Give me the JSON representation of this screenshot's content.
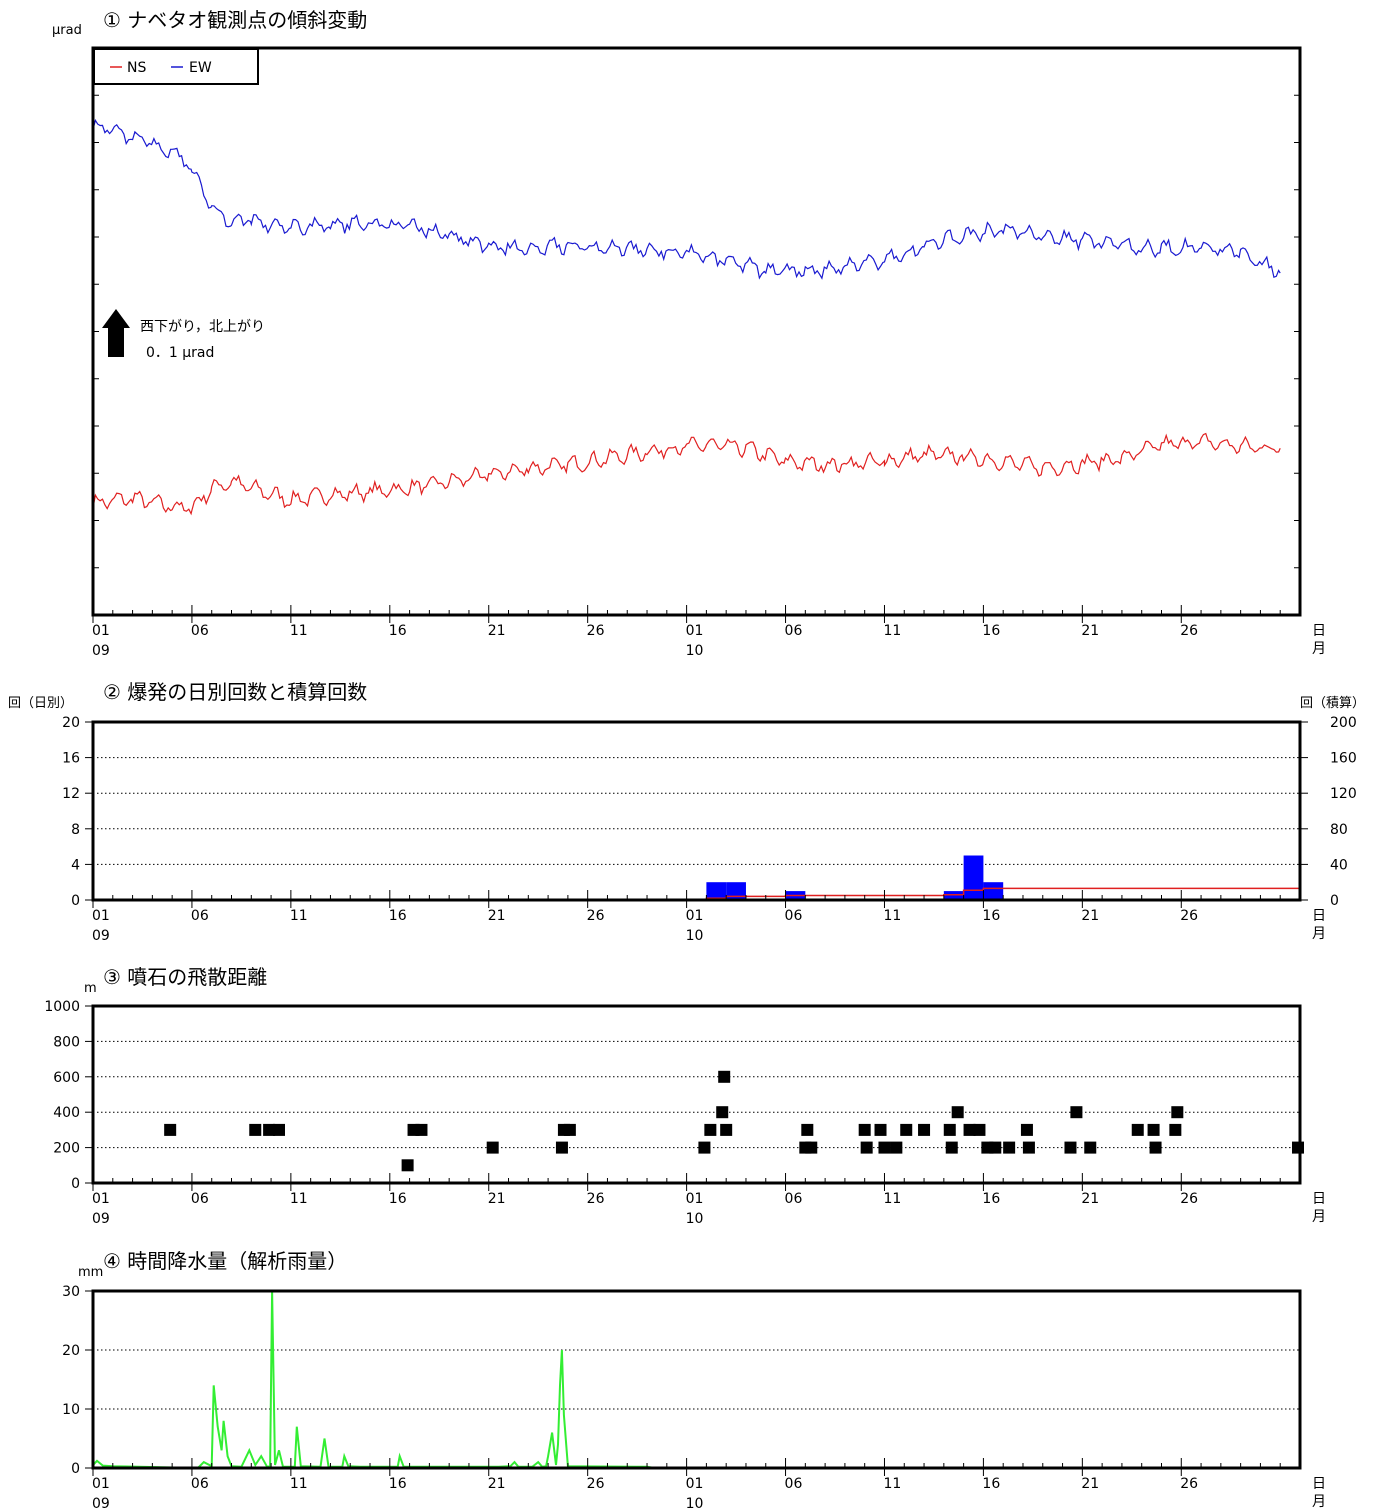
{
  "colors": {
    "ns": "#e02020",
    "ew": "#1a1ad0",
    "bar": "#0000ff",
    "cumulative": "#e02020",
    "rain": "#33ee33",
    "marker": "#000000"
  },
  "x_axis": {
    "tick_days": [
      0,
      5,
      10,
      15,
      20,
      25,
      30,
      35,
      40,
      45,
      50,
      55
    ],
    "tick_labels": [
      "01",
      "06",
      "11",
      "16",
      "21",
      "26",
      "01",
      "06",
      "11",
      "16",
      "21",
      "26"
    ],
    "month_labels": [
      {
        "day": 0,
        "label": "09"
      },
      {
        "day": 30,
        "label": "10"
      }
    ],
    "unit_day": "日",
    "unit_month": "月",
    "range_days": [
      0,
      61
    ]
  },
  "chart_data": [
    {
      "type": "line",
      "title": "① ナベタオ観測点の傾斜変動",
      "ylabel": "μrad",
      "legend": [
        {
          "name": "NS",
          "color": "#e02020"
        },
        {
          "name": "EW",
          "color": "#1a1ad0"
        }
      ],
      "annotation_line1": "西下がり，北上がり",
      "annotation_line2": "0．1 μrad",
      "x_unit": "day offset from 09/01",
      "series": [
        {
          "name": "NS",
          "points": [
            [
              0,
              2.35
            ],
            [
              2,
              2.5
            ],
            [
              4,
              2.25
            ],
            [
              5,
              2.2
            ],
            [
              6,
              2.8
            ],
            [
              7,
              3.0
            ],
            [
              8,
              2.8
            ],
            [
              10,
              2.45
            ],
            [
              12,
              2.6
            ],
            [
              14,
              2.7
            ],
            [
              16,
              2.8
            ],
            [
              18,
              3.0
            ],
            [
              20,
              3.2
            ],
            [
              22,
              3.4
            ],
            [
              24,
              3.5
            ],
            [
              26,
              3.7
            ],
            [
              28,
              3.9
            ],
            [
              30,
              4.05
            ],
            [
              31,
              4.1
            ],
            [
              33,
              4.0
            ],
            [
              35,
              3.6
            ],
            [
              37,
              3.5
            ],
            [
              40,
              3.6
            ],
            [
              42,
              3.8
            ],
            [
              44,
              3.75
            ],
            [
              46,
              3.6
            ],
            [
              48,
              3.4
            ],
            [
              50,
              3.55
            ],
            [
              52,
              3.7
            ],
            [
              54,
              4.1
            ],
            [
              56,
              4.2
            ],
            [
              58,
              4.05
            ],
            [
              60,
              4.0
            ]
          ]
        },
        {
          "name": "EW",
          "points": [
            [
              0,
              13.7
            ],
            [
              2,
              13.35
            ],
            [
              4,
              12.9
            ],
            [
              5,
              12.4
            ],
            [
              6,
              11.2
            ],
            [
              7,
              10.8
            ],
            [
              8,
              10.85
            ],
            [
              10,
              10.6
            ],
            [
              12,
              10.7
            ],
            [
              14,
              10.75
            ],
            [
              16,
              10.65
            ],
            [
              18,
              10.4
            ],
            [
              20,
              10.05
            ],
            [
              22,
              10.05
            ],
            [
              24,
              10.1
            ],
            [
              26,
              10.0
            ],
            [
              28,
              9.95
            ],
            [
              30,
              9.9
            ],
            [
              32,
              9.6
            ],
            [
              34,
              9.35
            ],
            [
              36,
              9.3
            ],
            [
              38,
              9.45
            ],
            [
              40,
              9.65
            ],
            [
              42,
              10.05
            ],
            [
              44,
              10.4
            ],
            [
              46,
              10.55
            ],
            [
              48,
              10.4
            ],
            [
              50,
              10.25
            ],
            [
              52,
              10.1
            ],
            [
              54,
              10.0
            ],
            [
              56,
              10.0
            ],
            [
              58,
              9.9
            ],
            [
              60,
              9.25
            ]
          ]
        }
      ],
      "ylim": [
        -1.0,
        16.0
      ],
      "ytick_count": 13
    },
    {
      "type": "bar",
      "title": "② 爆発の日別回数と積算回数",
      "ylabel_left": "回（日別）",
      "ylabel_right": "回（積算）",
      "yticks_left": [
        0,
        4,
        8,
        12,
        16,
        20
      ],
      "yticks_right": [
        0,
        40,
        80,
        120,
        160,
        200
      ],
      "ylim_left": [
        0,
        20
      ],
      "ylim_right": [
        0,
        200
      ],
      "bars": [
        {
          "day": 31,
          "value": 2
        },
        {
          "day": 32,
          "value": 2
        },
        {
          "day": 35,
          "value": 1
        },
        {
          "day": 43,
          "value": 1
        },
        {
          "day": 44,
          "value": 5
        },
        {
          "day": 45,
          "value": 2
        }
      ],
      "cumulative": [
        [
          0,
          0
        ],
        [
          31,
          2
        ],
        [
          32,
          4
        ],
        [
          35,
          5
        ],
        [
          43,
          6
        ],
        [
          44,
          11
        ],
        [
          45,
          13
        ],
        [
          61,
          13
        ]
      ]
    },
    {
      "type": "scatter",
      "title": "③ 噴石の飛散距離",
      "ylabel": "m",
      "yticks": [
        0,
        200,
        400,
        600,
        800,
        1000
      ],
      "ylim": [
        0,
        1000
      ],
      "points": [
        [
          3.9,
          300
        ],
        [
          8.2,
          300
        ],
        [
          8.9,
          300
        ],
        [
          9.4,
          300
        ],
        [
          15.9,
          100
        ],
        [
          16.2,
          300
        ],
        [
          16.6,
          300
        ],
        [
          20.2,
          200
        ],
        [
          23.7,
          200
        ],
        [
          23.8,
          300
        ],
        [
          24.1,
          300
        ],
        [
          30.9,
          200
        ],
        [
          31.2,
          300
        ],
        [
          31.8,
          400
        ],
        [
          31.9,
          600
        ],
        [
          32.0,
          300
        ],
        [
          36.0,
          200
        ],
        [
          36.1,
          300
        ],
        [
          36.3,
          200
        ],
        [
          39.0,
          300
        ],
        [
          39.1,
          200
        ],
        [
          39.8,
          300
        ],
        [
          40.0,
          200
        ],
        [
          40.6,
          200
        ],
        [
          41.1,
          300
        ],
        [
          42.0,
          300
        ],
        [
          43.3,
          300
        ],
        [
          43.4,
          200
        ],
        [
          43.7,
          400
        ],
        [
          44.3,
          300
        ],
        [
          44.8,
          300
        ],
        [
          45.2,
          200
        ],
        [
          45.6,
          200
        ],
        [
          46.3,
          200
        ],
        [
          47.2,
          300
        ],
        [
          47.3,
          200
        ],
        [
          49.4,
          200
        ],
        [
          49.7,
          400
        ],
        [
          50.4,
          200
        ],
        [
          52.8,
          300
        ],
        [
          53.6,
          300
        ],
        [
          53.7,
          200
        ],
        [
          54.7,
          300
        ],
        [
          54.8,
          400
        ],
        [
          61.0,
          200
        ]
      ]
    },
    {
      "type": "area",
      "title": "④ 時間降水量（解析雨量）",
      "ylabel": "mm",
      "yticks": [
        0,
        10,
        20,
        30
      ],
      "ylim": [
        0,
        30
      ],
      "points": [
        [
          0,
          0.5
        ],
        [
          0.2,
          1.2
        ],
        [
          0.5,
          0.4
        ],
        [
          1,
          0.3
        ],
        [
          5.3,
          0
        ],
        [
          5.6,
          1
        ],
        [
          6.0,
          0.3
        ],
        [
          6.1,
          14
        ],
        [
          6.3,
          7
        ],
        [
          6.5,
          3
        ],
        [
          6.6,
          8
        ],
        [
          6.8,
          2
        ],
        [
          7,
          0.3
        ],
        [
          7.5,
          0.2
        ],
        [
          7.9,
          3
        ],
        [
          8.2,
          0.5
        ],
        [
          8.5,
          2
        ],
        [
          8.8,
          0.2
        ],
        [
          8.95,
          0.3
        ],
        [
          9.05,
          30
        ],
        [
          9.2,
          0.5
        ],
        [
          9.4,
          3
        ],
        [
          9.6,
          0.2
        ],
        [
          10.2,
          0.2
        ],
        [
          10.3,
          7
        ],
        [
          10.5,
          0.3
        ],
        [
          11.5,
          0.2
        ],
        [
          11.7,
          5
        ],
        [
          11.9,
          0.2
        ],
        [
          12.6,
          0.2
        ],
        [
          12.7,
          2
        ],
        [
          12.9,
          0.3
        ],
        [
          13.5,
          0.2
        ],
        [
          15.4,
          0.2
        ],
        [
          15.5,
          2
        ],
        [
          15.7,
          0.2
        ],
        [
          16.5,
          0.2
        ],
        [
          17,
          0.2
        ],
        [
          20.5,
          0.2
        ],
        [
          21.1,
          0.3
        ],
        [
          21.3,
          1
        ],
        [
          21.5,
          0.2
        ],
        [
          22.2,
          0.2
        ],
        [
          22.5,
          1
        ],
        [
          22.7,
          0.2
        ],
        [
          22.9,
          0.3
        ],
        [
          23.0,
          2
        ],
        [
          23.2,
          6
        ],
        [
          23.4,
          0.5
        ],
        [
          23.5,
          4
        ],
        [
          23.6,
          14
        ],
        [
          23.7,
          20
        ],
        [
          23.8,
          9
        ],
        [
          24,
          0.3
        ],
        [
          28,
          0.2
        ],
        [
          28.4,
          0
        ]
      ]
    }
  ]
}
